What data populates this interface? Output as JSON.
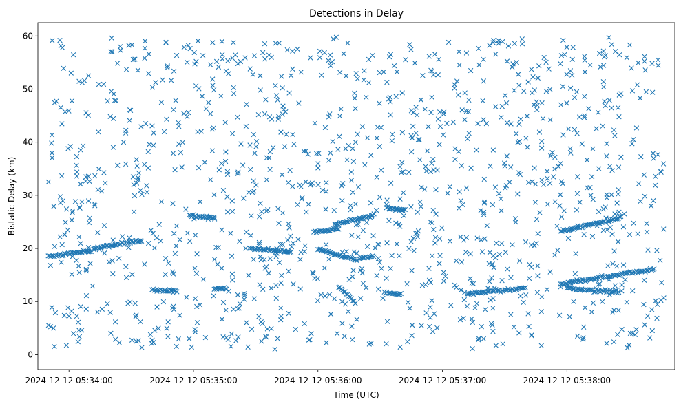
{
  "chart_data": {
    "type": "scatter",
    "title": "Detections in Delay",
    "xlabel": "Time (UTC)",
    "ylabel": "Bistatic Delay (km)",
    "x_unit": "seconds of day",
    "xlim": [
      "2024-12-12 05:33:45",
      "2024-12-12 05:38:52"
    ],
    "ylim": [
      -2.8,
      62.5
    ],
    "x_ticks": [
      {
        "value": "2024-12-12 05:34:00",
        "label": "2024-12-12 05:34:00"
      },
      {
        "value": "2024-12-12 05:35:00",
        "label": "2024-12-12 05:35:00"
      },
      {
        "value": "2024-12-12 05:36:00",
        "label": "2024-12-12 05:36:00"
      },
      {
        "value": "2024-12-12 05:37:00",
        "label": "2024-12-12 05:37:00"
      },
      {
        "value": "2024-12-12 05:38:00",
        "label": "2024-12-12 05:38:00"
      }
    ],
    "y_ticks": [
      0,
      10,
      20,
      30,
      40,
      50,
      60
    ],
    "marker": "x",
    "color": "#1f77b4",
    "grid": false,
    "series": [
      {
        "name": "",
        "x_start": "2024-12-12 05:33:50",
        "x_end": "2024-12-12 05:38:47",
        "random_scatter_count": 1250,
        "y_range": [
          1,
          60
        ],
        "tracks": [
          {
            "t0": "2024-12-12 05:33:50",
            "t1": "2024-12-12 05:34:10",
            "y0": 18.5,
            "y1": 19.5
          },
          {
            "t0": "2024-12-12 05:34:12",
            "t1": "2024-12-12 05:34:35",
            "y0": 20.0,
            "y1": 21.5
          },
          {
            "t0": "2024-12-12 05:34:40",
            "t1": "2024-12-12 05:34:52",
            "y0": 12.2,
            "y1": 12.0
          },
          {
            "t0": "2024-12-12 05:34:58",
            "t1": "2024-12-12 05:35:10",
            "y0": 26.2,
            "y1": 25.7
          },
          {
            "t0": "2024-12-12 05:35:10",
            "t1": "2024-12-12 05:35:16",
            "y0": 12.5,
            "y1": 12.4
          },
          {
            "t0": "2024-12-12 05:35:27",
            "t1": "2024-12-12 05:35:47",
            "y0": 20.0,
            "y1": 19.4
          },
          {
            "t0": "2024-12-12 05:35:58",
            "t1": "2024-12-12 05:36:10",
            "y0": 23.2,
            "y1": 23.6
          },
          {
            "t0": "2024-12-12 05:36:00",
            "t1": "2024-12-12 05:36:18",
            "y0": 19.9,
            "y1": 17.8
          },
          {
            "t0": "2024-12-12 05:36:08",
            "t1": "2024-12-12 05:36:27",
            "y0": 24.5,
            "y1": 26.3
          },
          {
            "t0": "2024-12-12 05:36:20",
            "t1": "2024-12-12 05:36:27",
            "y0": 18.2,
            "y1": 18.4
          },
          {
            "t0": "2024-12-12 05:36:10",
            "t1": "2024-12-12 05:36:18",
            "y0": 12.8,
            "y1": 9.8
          },
          {
            "t0": "2024-12-12 05:36:32",
            "t1": "2024-12-12 05:36:40",
            "y0": 11.7,
            "y1": 11.4
          },
          {
            "t0": "2024-12-12 05:36:33",
            "t1": "2024-12-12 05:36:42",
            "y0": 27.6,
            "y1": 27.3
          },
          {
            "t0": "2024-12-12 05:37:12",
            "t1": "2024-12-12 05:37:40",
            "y0": 11.5,
            "y1": 12.6
          },
          {
            "t0": "2024-12-12 05:37:57",
            "t1": "2024-12-12 05:38:26",
            "y0": 23.2,
            "y1": 25.8
          },
          {
            "t0": "2024-12-12 05:37:57",
            "t1": "2024-12-12 05:38:42",
            "y0": 13.3,
            "y1": 16.1
          },
          {
            "t0": "2024-12-12 05:38:00",
            "t1": "2024-12-12 05:38:25",
            "y0": 12.5,
            "y1": 11.8
          }
        ]
      }
    ]
  }
}
